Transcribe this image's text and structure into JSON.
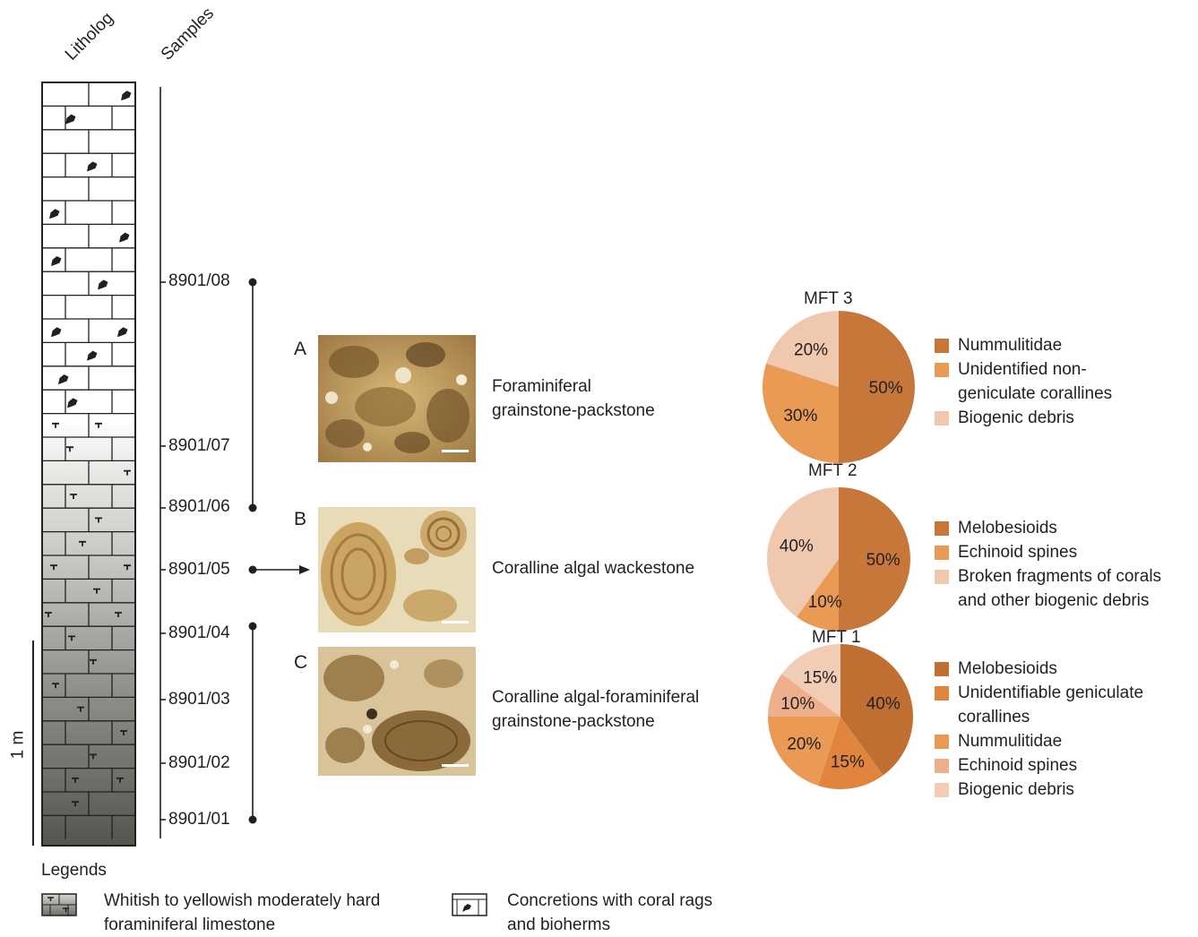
{
  "headers": {
    "litholog": "Litholog",
    "samples": "Samples"
  },
  "samples": [
    "8901/08",
    "8901/07",
    "8901/06",
    "8901/05",
    "8901/04",
    "8901/03",
    "8901/02",
    "8901/01"
  ],
  "scale_bar_label": "1 m",
  "micro_photos": [
    {
      "letter": "A",
      "description": "Foraminiferal\ngrainstone-packstone"
    },
    {
      "letter": "B",
      "description": "Coralline algal wackestone"
    },
    {
      "letter": "C",
      "description": "Coralline algal-foraminiferal\ngrainstone-packstone"
    }
  ],
  "chart_data": [
    {
      "type": "pie",
      "title": "MFT 3",
      "slices": [
        {
          "label": "Nummulitidae",
          "value": 50,
          "text": "50%",
          "color": "#c8773a"
        },
        {
          "label": "Unidentified non-\ngeniculate corallines",
          "value": 30,
          "text": "30%",
          "color": "#e99a55"
        },
        {
          "label": "Biogenic debris",
          "value": 20,
          "text": "20%",
          "color": "#f0c8ad"
        }
      ]
    },
    {
      "type": "pie",
      "title": "MFT 2",
      "slices": [
        {
          "label": "Melobesioids",
          "value": 50,
          "text": "50%",
          "color": "#c8773a"
        },
        {
          "label": "Echinoid spines",
          "value": 10,
          "text": "10%",
          "color": "#e99a55"
        },
        {
          "label": "Broken fragments of corals\nand other biogenic debris",
          "value": 40,
          "text": "40%",
          "color": "#f0c8ad"
        }
      ]
    },
    {
      "type": "pie",
      "title": "MFT 1",
      "slices": [
        {
          "label": "Melobesioids",
          "value": 40,
          "text": "40%",
          "color": "#c06f33"
        },
        {
          "label": "Unidentifiable geniculate\ncorallines",
          "value": 15,
          "text": "15%",
          "color": "#e0843e"
        },
        {
          "label": "Nummulitidae",
          "value": 20,
          "text": "20%",
          "color": "#ea9a55"
        },
        {
          "label": "Echinoid spines",
          "value": 10,
          "text": "10%",
          "color": "#eeb08c"
        },
        {
          "label": "Biogenic debris",
          "value": 15,
          "text": "15%",
          "color": "#f1cdb6"
        }
      ]
    }
  ],
  "legends": {
    "title": "Legends",
    "items": [
      {
        "text": "Whitish to yellowish moderately hard\nforaminiferal limestone"
      },
      {
        "text": "Concretions with coral rags\nand bioherms"
      }
    ]
  }
}
